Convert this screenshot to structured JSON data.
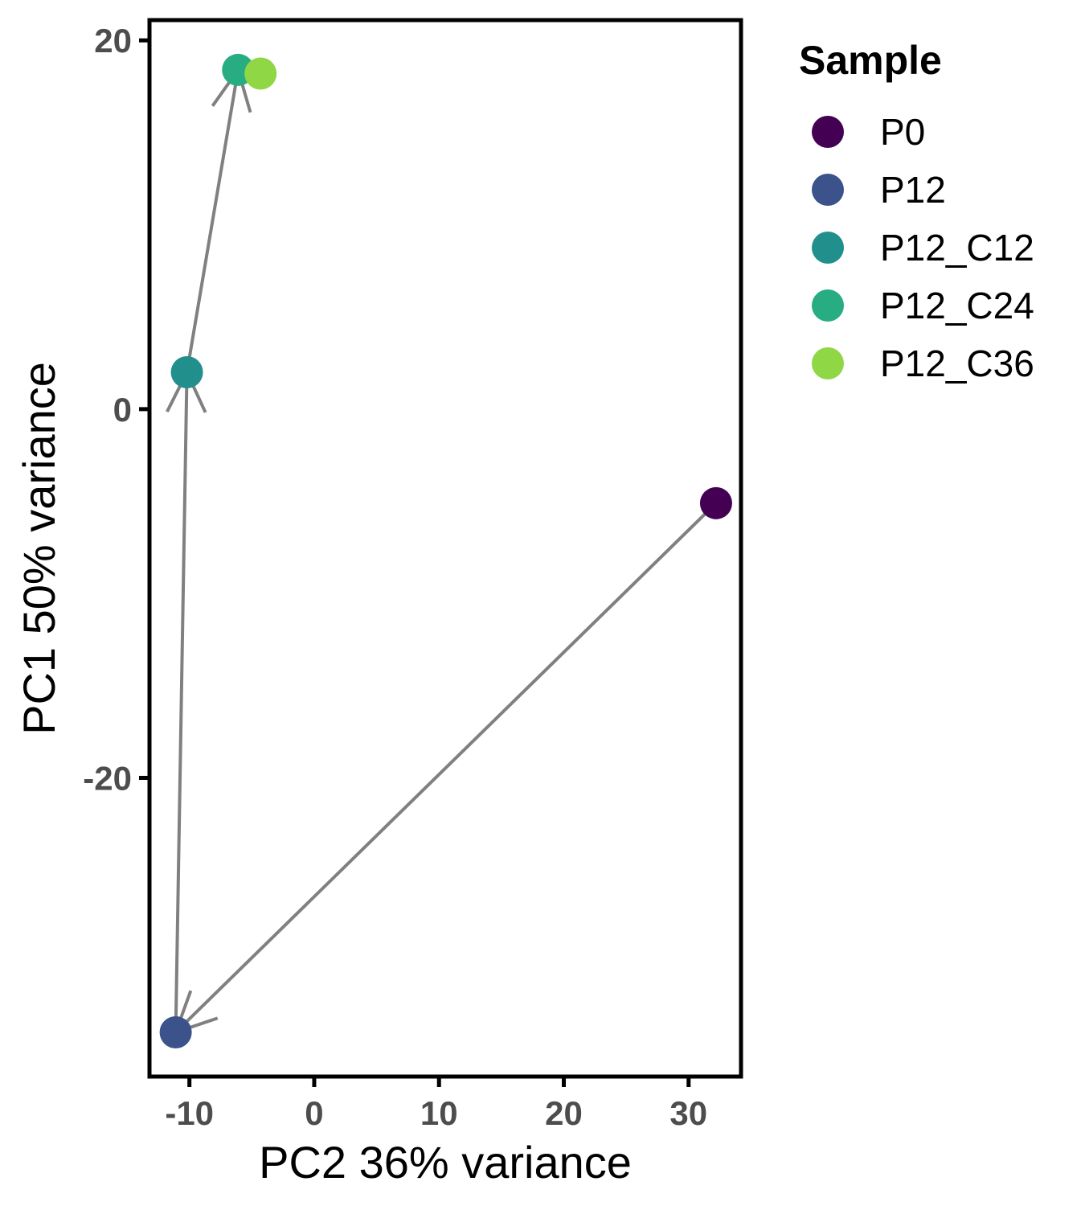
{
  "chart_data": {
    "type": "scatter",
    "xlabel": "PC2 36% variance",
    "ylabel": "PC1 50% variance",
    "xlim": [
      -13.2,
      34.2
    ],
    "ylim": [
      -36.2,
      21.1
    ],
    "x_ticks": [
      -10,
      0,
      10,
      20,
      30
    ],
    "y_ticks": [
      -20,
      0,
      20
    ],
    "legend": {
      "title": "Sample",
      "placement": "right",
      "entries": [
        "P0",
        "P12",
        "P12_C12",
        "P12_C24",
        "P12_C36"
      ]
    },
    "points": [
      {
        "sample": "P0",
        "x": 32.2,
        "y": -5.1,
        "color": "#440154"
      },
      {
        "sample": "P12",
        "x": -11.1,
        "y": -33.8,
        "color": "#3B528B"
      },
      {
        "sample": "P12_C12",
        "x": -10.2,
        "y": 2.0,
        "color": "#21908C"
      },
      {
        "sample": "P12_C24",
        "x": -6.1,
        "y": 18.4,
        "color": "#27AD81"
      },
      {
        "sample": "P12_C36",
        "x": -4.3,
        "y": 18.2,
        "color": "#8FD744"
      }
    ],
    "arrows": [
      {
        "from": "P0",
        "to": "P12"
      },
      {
        "from": "P12",
        "to": "P12_C12"
      },
      {
        "from": "P12_C12",
        "to": "P12_C24"
      }
    ],
    "arrow_color": "#808080",
    "grid": false
  }
}
